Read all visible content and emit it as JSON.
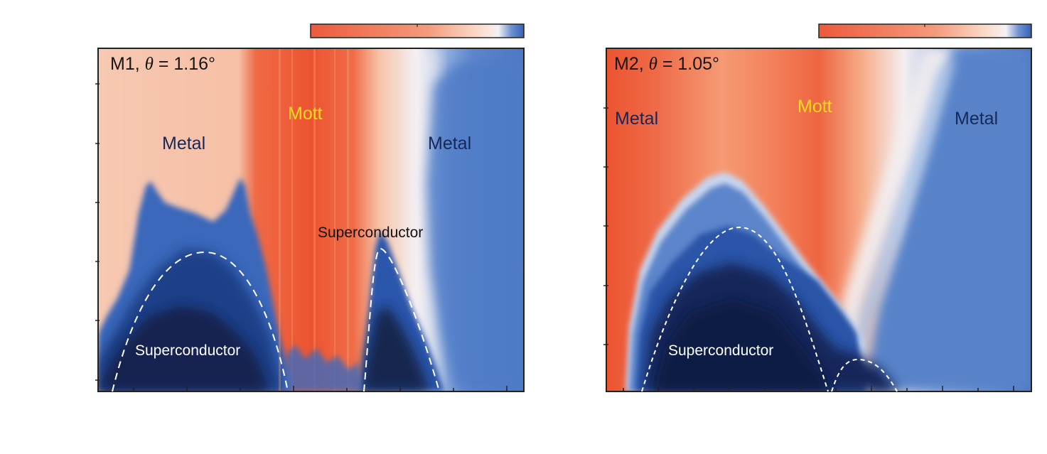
{
  "colors": {
    "red": "#ec5532",
    "peach": "#f8c3a6",
    "white": "#f6f2f2",
    "light_blue": "#8aaee0",
    "blue": "#4b78c4",
    "dark_blue": "#16285a",
    "navy": "#0e1a3d",
    "yellow": "#ffdd1c"
  },
  "chart_data": [
    {
      "type": "heatmap",
      "panel": "left",
      "title_prefix": "M1, ",
      "title_symbol": "θ",
      "title_value": " = 1.16°",
      "xlabel": "",
      "ylabel": "",
      "colorbar": "top-right",
      "regions": [
        {
          "key": "metal_left",
          "label": "Metal",
          "color": "#16285a"
        },
        {
          "key": "mott",
          "label": "Mott",
          "color": "#ffdd1c"
        },
        {
          "key": "metal_right",
          "label": "Metal",
          "color": "#16285a"
        },
        {
          "key": "sc_right",
          "label": "Superconductor",
          "color": "#111111"
        },
        {
          "key": "sc_left",
          "label": "Superconductor",
          "color": "#ffffff"
        }
      ]
    },
    {
      "type": "heatmap",
      "panel": "right",
      "title_prefix": "M2, ",
      "title_symbol": "θ",
      "title_value": " = 1.05°",
      "xlabel": "",
      "ylabel": "",
      "colorbar": "top-right",
      "regions": [
        {
          "key": "metal_left",
          "label": "Metal",
          "color": "#16285a"
        },
        {
          "key": "mott",
          "label": "Mott",
          "color": "#ffdd1c"
        },
        {
          "key": "metal_right",
          "label": "Metal",
          "color": "#16285a"
        },
        {
          "key": "sc",
          "label": "Superconductor",
          "color": "#ffffff"
        }
      ]
    }
  ]
}
